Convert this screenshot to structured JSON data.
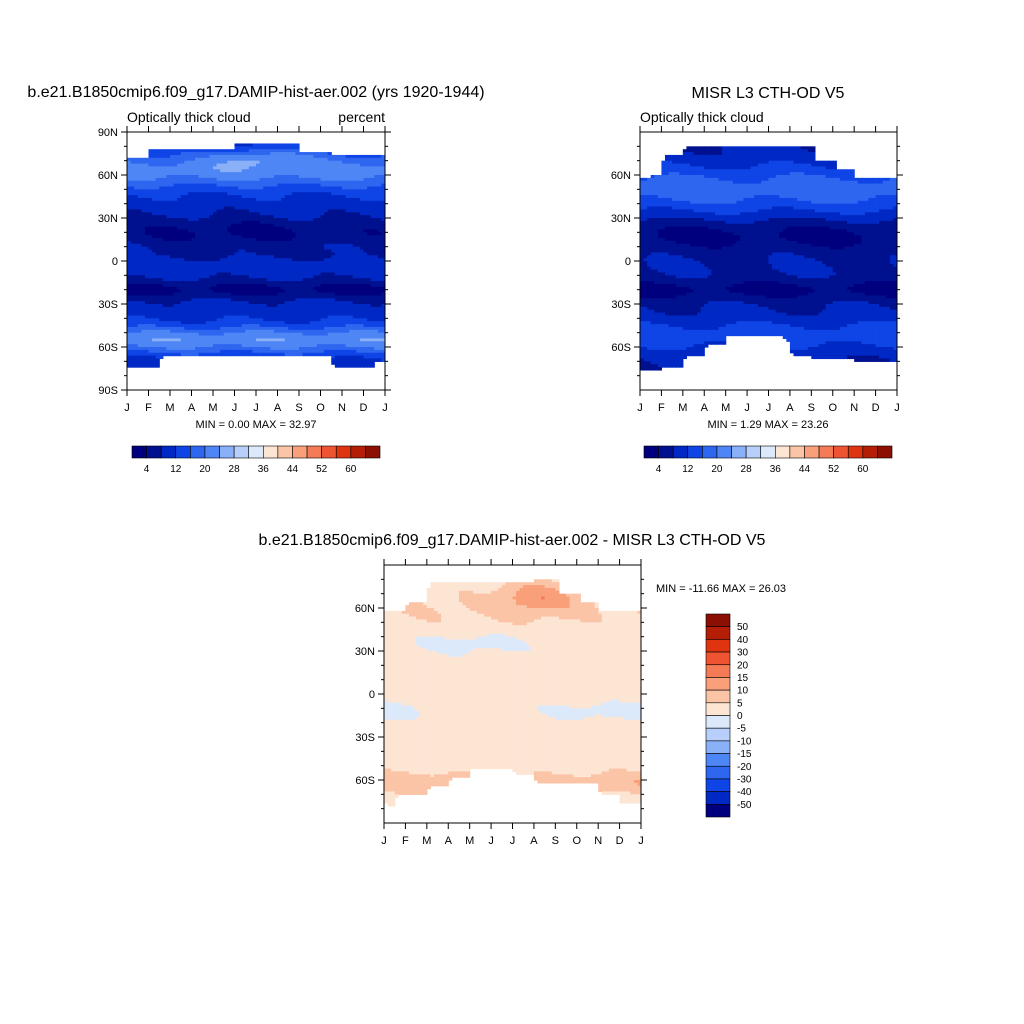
{
  "chart_data": [
    {
      "type": "heatmap",
      "title": "b.e21.B1850cmip6.f09_g17.DAMIP-hist-aer.002 (yrs 1920-1944)",
      "left_subtitle": "Optically thick cloud",
      "right_subtitle": "percent",
      "x_ticks": [
        "J",
        "F",
        "M",
        "A",
        "M",
        "J",
        "J",
        "A",
        "S",
        "O",
        "N",
        "D",
        "J"
      ],
      "y_ticks": [
        "90N",
        "60N",
        "30N",
        "0",
        "30S",
        "60S",
        "90S"
      ],
      "y_tick_values": [
        90,
        60,
        30,
        0,
        -30,
        -60,
        -90
      ],
      "ylim": [
        -90,
        90
      ],
      "min_max_text": "MIN =   0.00 MAX =  32.97",
      "stats": {
        "min": 0.0,
        "max": 32.97
      },
      "colorbar_labels": [
        "4",
        "12",
        "20",
        "28",
        "36",
        "44",
        "52",
        "60"
      ],
      "field": "cesm"
    },
    {
      "type": "heatmap",
      "title": "MISR L3 CTH-OD V5",
      "left_subtitle": "Optically thick cloud",
      "right_subtitle": "",
      "x_ticks": [
        "J",
        "F",
        "M",
        "A",
        "M",
        "J",
        "J",
        "A",
        "S",
        "O",
        "N",
        "D",
        "J"
      ],
      "y_ticks": [
        "60N",
        "30N",
        "0",
        "30S",
        "60S"
      ],
      "y_tick_values": [
        60,
        30,
        0,
        -30,
        -60
      ],
      "ylim": [
        -90,
        90
      ],
      "min_max_text": "MIN =   1.29 MAX =  23.26",
      "stats": {
        "min": 1.29,
        "max": 23.26
      },
      "colorbar_labels": [
        "4",
        "12",
        "20",
        "28",
        "36",
        "44",
        "52",
        "60"
      ],
      "field": "misr"
    },
    {
      "type": "heatmap",
      "title": "b.e21.B1850cmip6.f09_g17.DAMIP-hist-aer.002 - MISR L3 CTH-OD V5",
      "left_subtitle": "",
      "right_subtitle": "",
      "x_ticks": [
        "J",
        "F",
        "M",
        "A",
        "M",
        "J",
        "J",
        "A",
        "S",
        "O",
        "N",
        "D",
        "J"
      ],
      "y_ticks": [
        "60N",
        "30N",
        "0",
        "30S",
        "60S"
      ],
      "y_tick_values": [
        60,
        30,
        0,
        -30,
        -60
      ],
      "ylim": [
        -90,
        90
      ],
      "min_max_text": "MIN = -11.66 MAX =  26.03",
      "stats": {
        "min": -11.66,
        "max": 26.03
      },
      "colorbar_labels": [
        "50",
        "40",
        "30",
        "20",
        "15",
        "10",
        "5",
        "0",
        "-5",
        "-10",
        "-15",
        "-20",
        "-30",
        "-40",
        "-50"
      ],
      "field": "diff"
    }
  ],
  "colors": {
    "seq": [
      "#00007f",
      "#00118f",
      "#0028c4",
      "#0f45e6",
      "#2e66f0",
      "#4f86f5",
      "#8ab0f7",
      "#b7cffa",
      "#dce9fb",
      "#fde5d4",
      "#fbc4a6",
      "#f9a07b",
      "#f47b55",
      "#ee5431",
      "#de3410",
      "#b51e06",
      "#8b0f03"
    ],
    "diff": [
      "#8b0f03",
      "#b51e06",
      "#de3410",
      "#ee5431",
      "#f47b55",
      "#f9a07b",
      "#fbc4a6",
      "#fde5d4",
      "#dce9fb",
      "#b7cffa",
      "#8ab0f7",
      "#4f86f5",
      "#2e66f0",
      "#0f45e6",
      "#0028c4",
      "#00007f"
    ]
  }
}
